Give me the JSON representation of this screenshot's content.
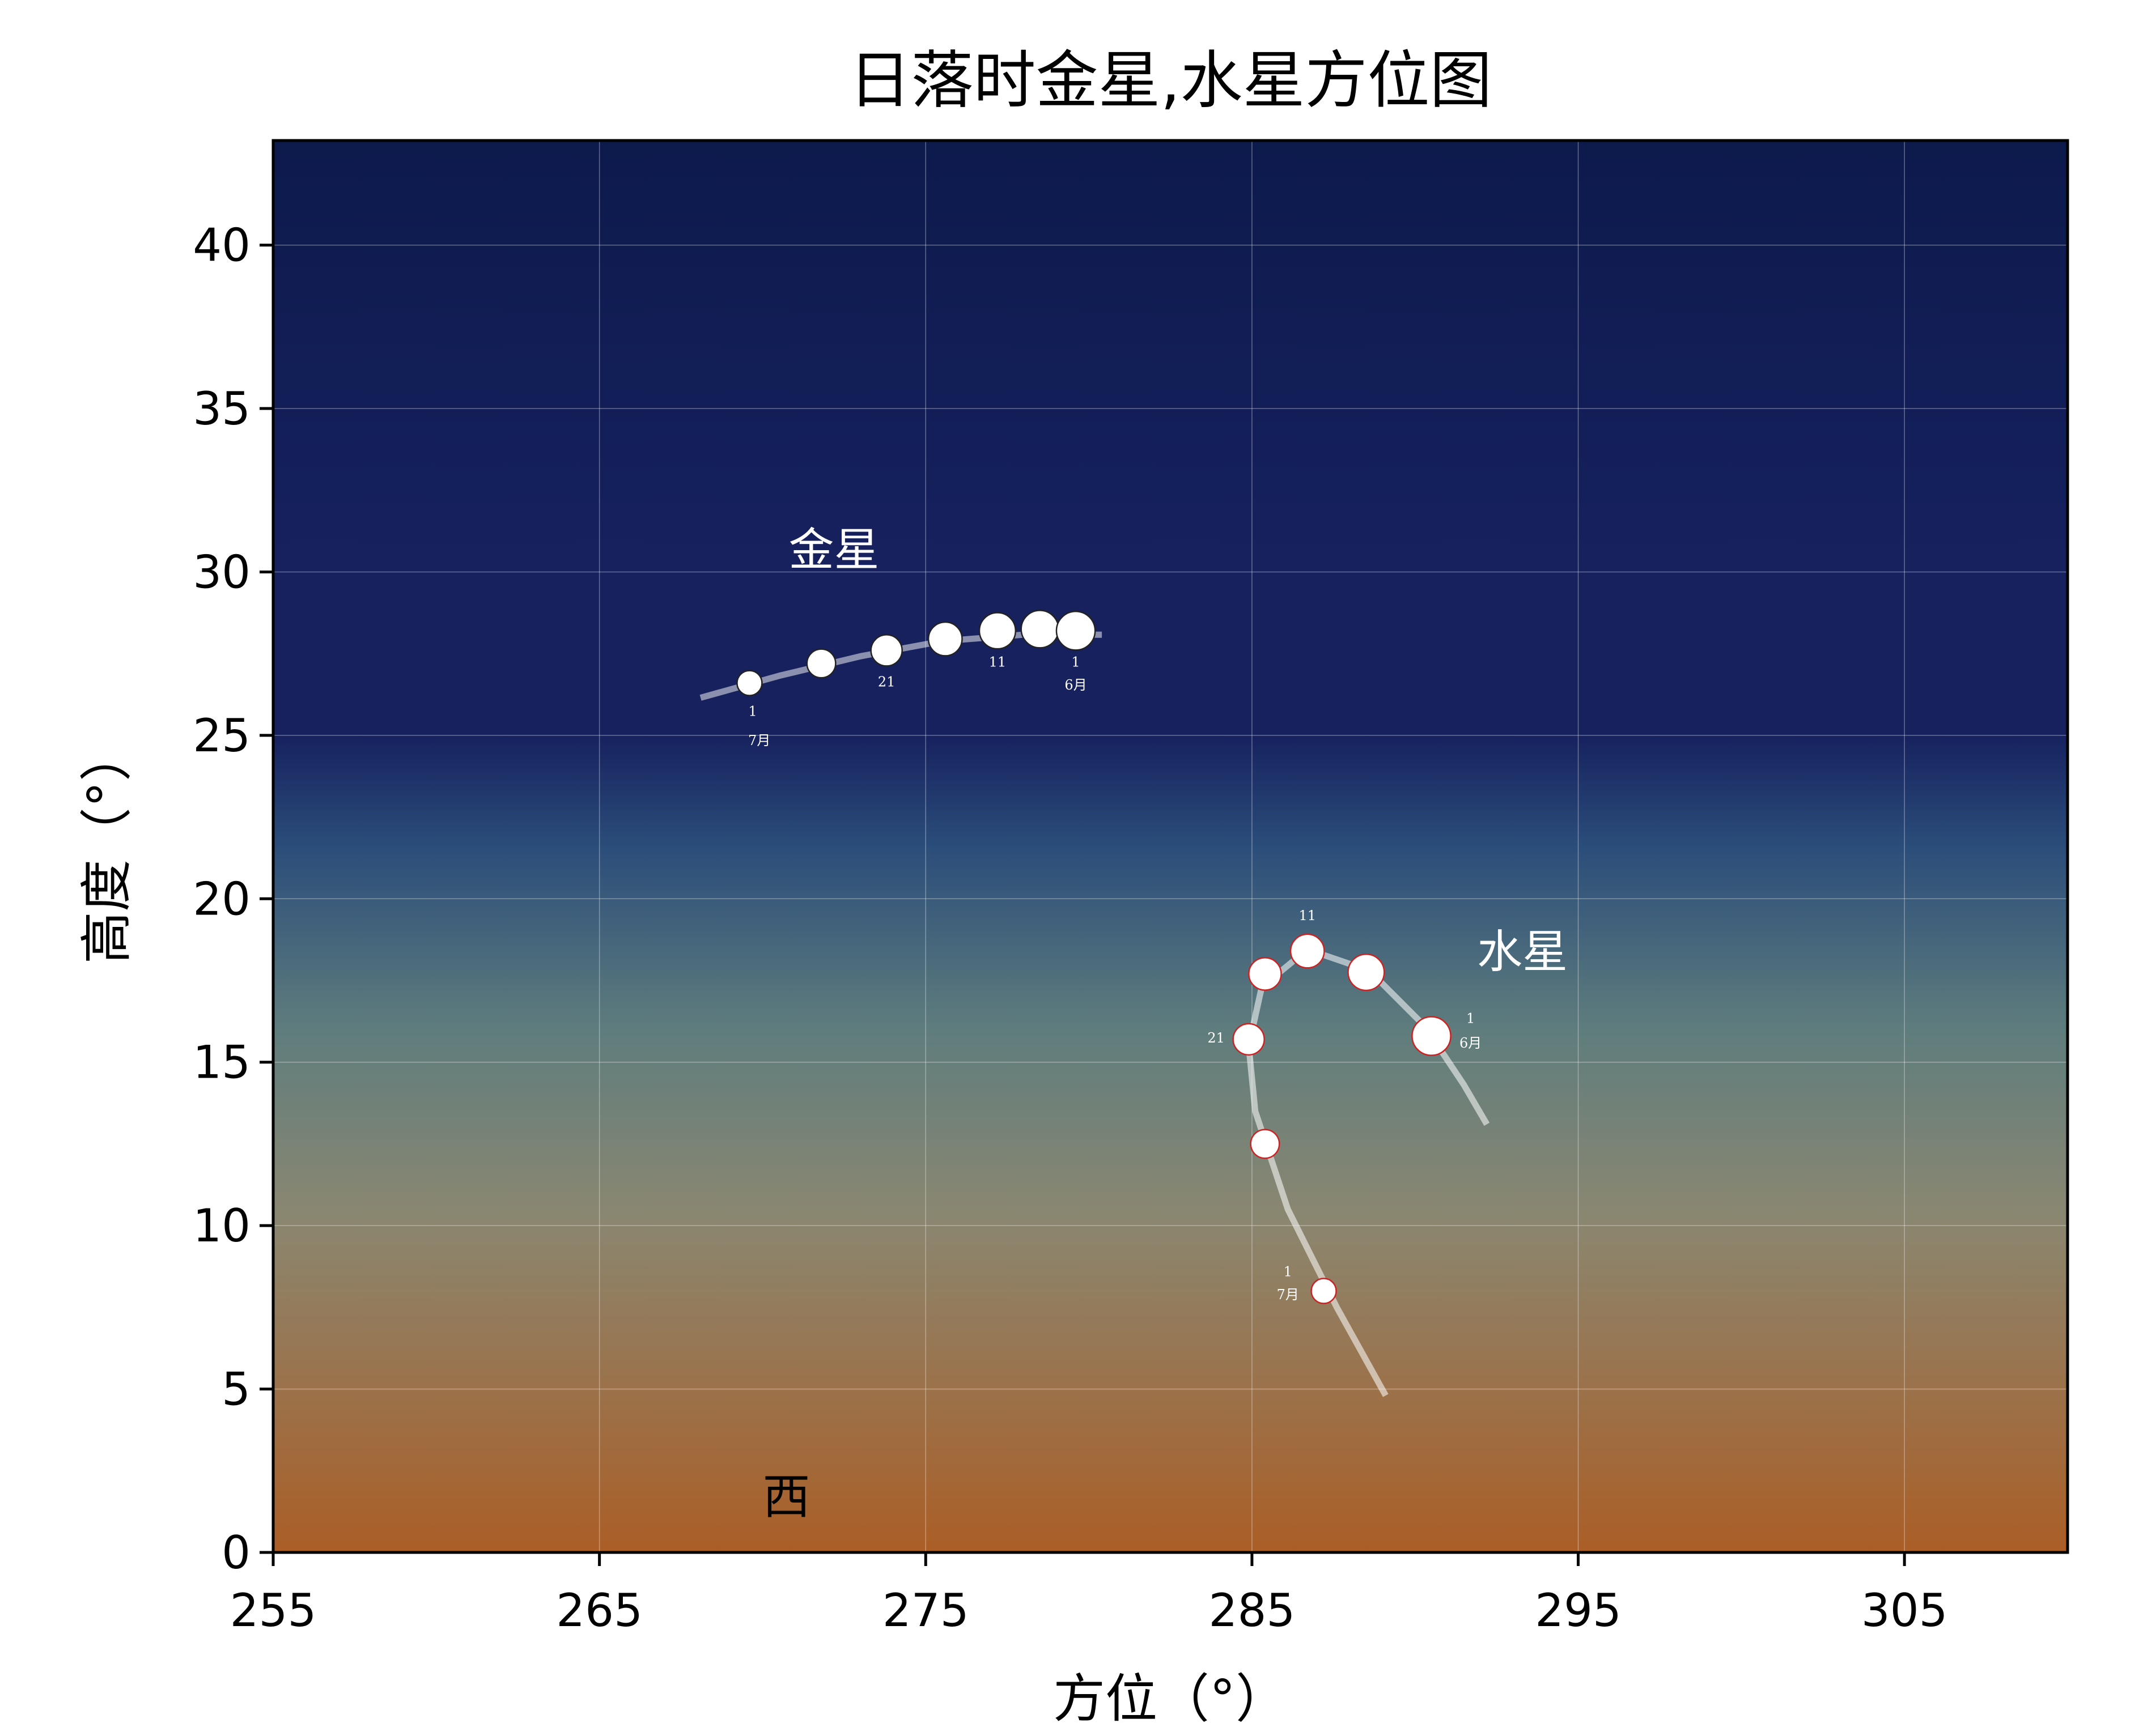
{
  "chart_data": {
    "type": "scatter",
    "title": "日落时金星,水星方位图",
    "xlabel": "方位（°）",
    "ylabel": "高度（°）",
    "xlim": [
      255,
      310
    ],
    "ylim": [
      0,
      43.2
    ],
    "xticks": [
      255,
      265,
      275,
      285,
      295,
      305
    ],
    "yticks": [
      0,
      5,
      10,
      15,
      20,
      25,
      30,
      35,
      40
    ],
    "grid": true,
    "colors": {
      "sky_top": "#0d1a4c",
      "sky_mid": "#16215e",
      "sky_blue": "#2b4d7a",
      "sky_teal": "#5f7d7d",
      "sky_khaki": "#8a8771",
      "horizon": "#ab5e26",
      "venus_edge": "#222222",
      "mercury_edge": "#cc2222",
      "track": "#ffffff"
    },
    "direction_label": {
      "text": "西",
      "x": 270,
      "y": 1.2
    },
    "series": [
      {
        "name": "金星",
        "label": {
          "text": "金星",
          "x": 270.8,
          "y": 30.2
        },
        "track": [
          [
            268.1,
            26.15
          ],
          [
            270.5,
            26.82
          ],
          [
            273,
            27.42
          ],
          [
            275.5,
            27.88
          ],
          [
            278,
            28.08
          ],
          [
            280.4,
            28.08
          ]
        ],
        "points": [
          {
            "x": 269.6,
            "y": 26.6,
            "r": 1.0
          },
          {
            "x": 271.8,
            "y": 27.2,
            "r": 1.15
          },
          {
            "x": 273.8,
            "y": 27.6,
            "r": 1.25
          },
          {
            "x": 275.6,
            "y": 27.95,
            "r": 1.35
          },
          {
            "x": 277.2,
            "y": 28.2,
            "r": 1.45
          },
          {
            "x": 278.5,
            "y": 28.25,
            "r": 1.5
          },
          {
            "x": 279.6,
            "y": 28.2,
            "r": 1.55
          }
        ],
        "annotations": [
          {
            "text": "1",
            "x": 269.7,
            "y": 25.6
          },
          {
            "text": "7月",
            "x": 269.9,
            "y": 24.7
          },
          {
            "text": "21",
            "x": 273.8,
            "y": 26.5
          },
          {
            "text": "11",
            "x": 277.2,
            "y": 27.1
          },
          {
            "text": "1",
            "x": 279.6,
            "y": 27.1
          },
          {
            "text": "6月",
            "x": 279.6,
            "y": 26.4
          }
        ]
      },
      {
        "name": "水星",
        "label": {
          "text": "水星",
          "x": 291.9,
          "y": 17.9
        },
        "track": [
          [
            289.1,
            4.8
          ],
          [
            287.6,
            7.5
          ],
          [
            286.1,
            10.5
          ],
          [
            285.1,
            13.5
          ],
          [
            284.9,
            15.5
          ],
          [
            285.3,
            17.3
          ],
          [
            286.7,
            18.45
          ],
          [
            288.6,
            17.8
          ],
          [
            290.3,
            16.1
          ],
          [
            291.5,
            14.3
          ],
          [
            292.2,
            13.1
          ]
        ],
        "points": [
          {
            "x": 287.2,
            "y": 8.0,
            "r": 1.0
          },
          {
            "x": 285.4,
            "y": 12.5,
            "r": 1.15
          },
          {
            "x": 284.9,
            "y": 15.7,
            "r": 1.25
          },
          {
            "x": 285.4,
            "y": 17.7,
            "r": 1.3
          },
          {
            "x": 286.7,
            "y": 18.4,
            "r": 1.35
          },
          {
            "x": 288.5,
            "y": 17.75,
            "r": 1.45
          },
          {
            "x": 290.5,
            "y": 15.8,
            "r": 1.55
          }
        ],
        "annotations": [
          {
            "text": "1",
            "x": 286.1,
            "y": 8.45
          },
          {
            "text": "7月",
            "x": 286.1,
            "y": 7.75
          },
          {
            "text": "21",
            "x": 283.9,
            "y": 15.6
          },
          {
            "text": "11",
            "x": 286.7,
            "y": 19.35
          },
          {
            "text": "1",
            "x": 291.7,
            "y": 16.2
          },
          {
            "text": "6月",
            "x": 291.7,
            "y": 15.45
          }
        ]
      }
    ]
  }
}
